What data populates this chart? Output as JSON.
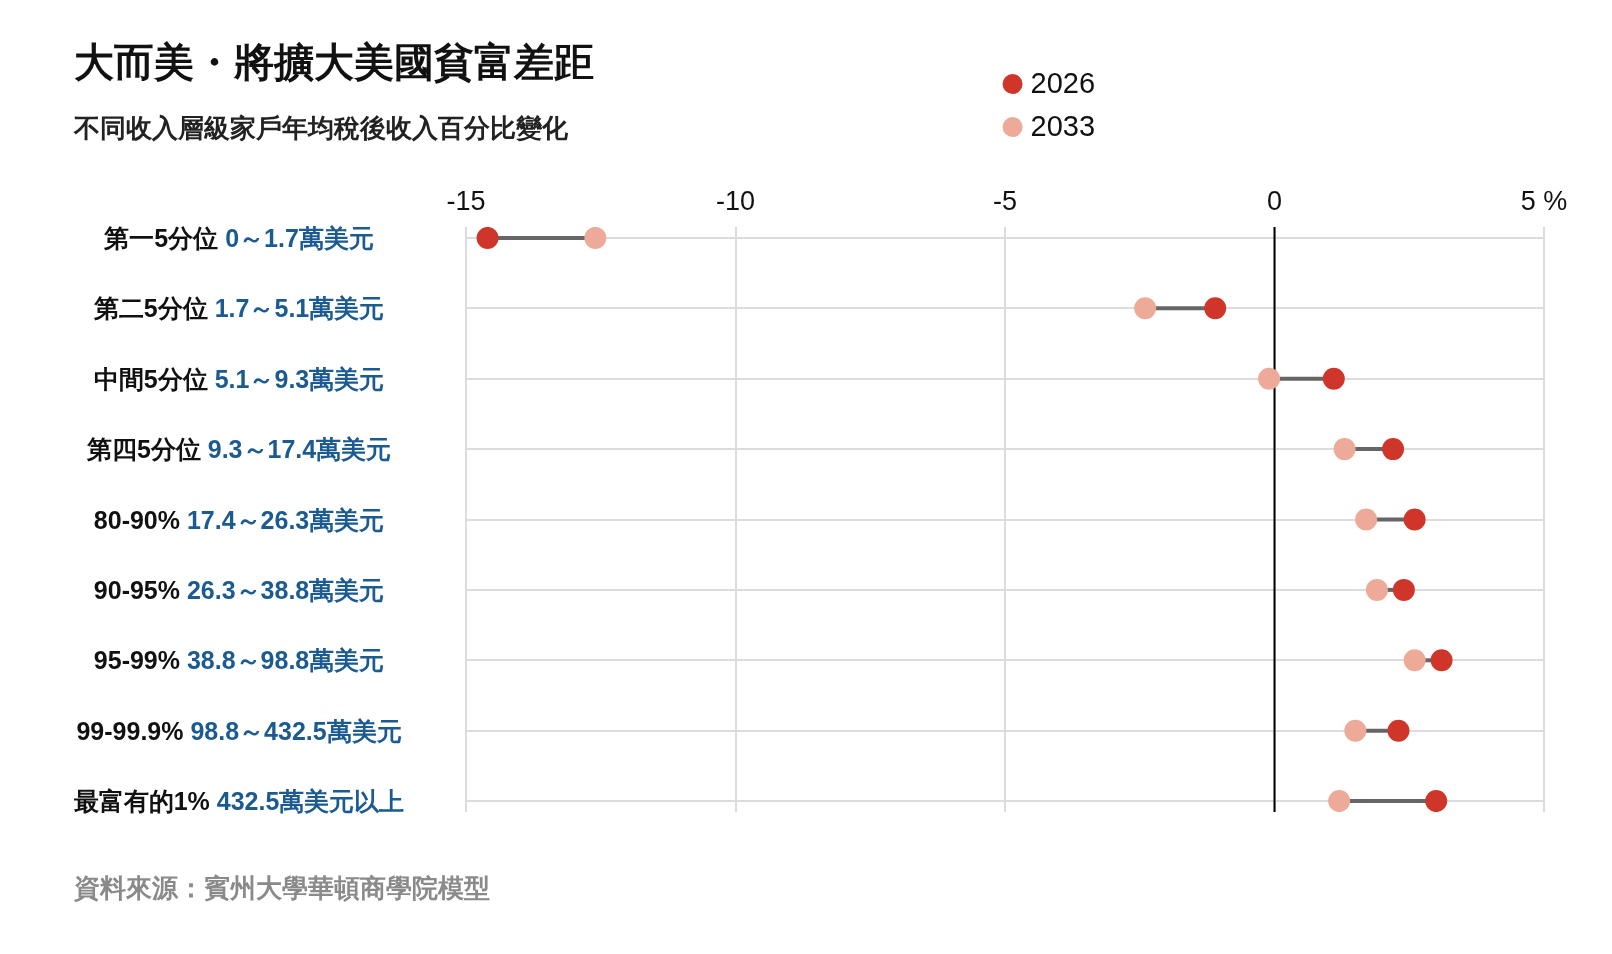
{
  "chart_data": {
    "type": "scatter",
    "orientation": "horizontal",
    "title": "大而美・將擴大美國貧富差距",
    "subtitle": "不同收入層級家戶年均稅後收入百分比變化",
    "annotations": [
      "資料來源：賓州大學華頓商學院模型"
    ],
    "categories": [
      "第一5分位 0～1.7萬美元",
      "第二5分位 1.7～5.1萬美元",
      "中間5分位 5.1～9.3萬美元",
      "第四5分位 9.3～17.4萬美元",
      "80-90% 17.4～26.3萬美元",
      "90-95% 26.3～38.8萬美元",
      "95-99% 38.8～98.8萬美元",
      "99-99.9% 98.8～432.5萬美元",
      "最富有的1% 432.5萬美元以上"
    ],
    "series": [
      {
        "name": "2026",
        "color": "#d0352a",
        "values": [
          -14.6,
          -1.1,
          1.1,
          2.2,
          2.6,
          2.4,
          3.1,
          2.3,
          3.0
        ]
      },
      {
        "name": "2033",
        "color": "#eeaa98",
        "values": [
          -12.6,
          -2.4,
          -0.1,
          1.3,
          1.7,
          1.9,
          2.6,
          1.5,
          1.2
        ]
      }
    ],
    "xlim": [
      -15,
      5
    ],
    "xticks": [
      -15,
      -10,
      -5,
      0,
      {
        "value": 5,
        "label": "5 %"
      }
    ],
    "grid": true,
    "legend": "top",
    "marker": "circle",
    "ref_lines": [
      {
        "axis": "x",
        "value": 0,
        "color": "#000000"
      }
    ]
  }
}
